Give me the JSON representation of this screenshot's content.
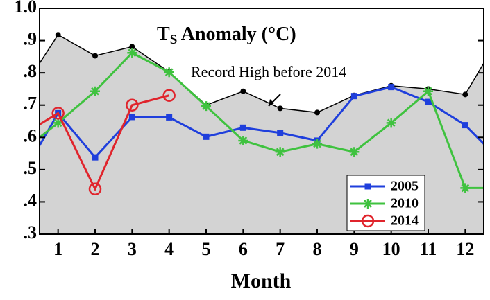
{
  "chart_data": {
    "type": "line",
    "title": "T",
    "title_subscript": "S",
    "title_rest": " Anomaly (°C)",
    "xlabel": "Month",
    "annotation": "Record High before 2014",
    "xlim": [
      0.5,
      12.5
    ],
    "xticks": [
      1,
      2,
      3,
      4,
      5,
      6,
      7,
      8,
      9,
      10,
      11,
      12
    ],
    "ylim": [
      0.3,
      1.0
    ],
    "yticks": [
      {
        "value": 0.3,
        "label": ".3"
      },
      {
        "value": 0.4,
        "label": ".4"
      },
      {
        "value": 0.5,
        "label": ".5"
      },
      {
        "value": 0.6,
        "label": ".6"
      },
      {
        "value": 0.7,
        "label": ".7"
      },
      {
        "value": 0.8,
        "label": ".8"
      },
      {
        "value": 0.9,
        "label": ".9"
      },
      {
        "value": 1.0,
        "label": "1.0"
      }
    ],
    "record": {
      "color": "#d3d3d3",
      "line_color": "#000000",
      "x": [
        0.5,
        1,
        2,
        3,
        4,
        5,
        6,
        7,
        8,
        9,
        10,
        11,
        12,
        12.5
      ],
      "values": [
        0.83,
        0.918,
        0.853,
        0.881,
        0.803,
        0.7,
        0.743,
        0.69,
        0.677,
        0.73,
        0.76,
        0.75,
        0.733,
        0.83
      ]
    },
    "series": [
      {
        "name": "2005",
        "color": "#1f3fdc",
        "marker": "square",
        "x": [
          0.5,
          1,
          2,
          3,
          4,
          5,
          6,
          7,
          8,
          9,
          10,
          11,
          12,
          12.5
        ],
        "values": [
          0.575,
          0.675,
          0.538,
          0.663,
          0.662,
          0.602,
          0.63,
          0.614,
          0.59,
          0.728,
          0.756,
          0.71,
          0.638,
          0.58
        ]
      },
      {
        "name": "2010",
        "color": "#3fc23f",
        "marker": "star",
        "x": [
          0.5,
          1,
          2,
          3,
          4,
          5,
          6,
          7,
          8,
          9,
          10,
          11,
          12,
          12.5
        ],
        "values": [
          0.6,
          0.645,
          0.743,
          0.862,
          0.802,
          0.697,
          0.59,
          0.555,
          0.58,
          0.555,
          0.645,
          0.743,
          0.443,
          0.443
        ]
      },
      {
        "name": "2014",
        "color": "#e0242c",
        "marker": "circle",
        "x": [
          0.5,
          1,
          2,
          3,
          4
        ],
        "values": [
          0.64,
          0.675,
          0.44,
          0.7,
          0.73
        ]
      }
    ]
  }
}
